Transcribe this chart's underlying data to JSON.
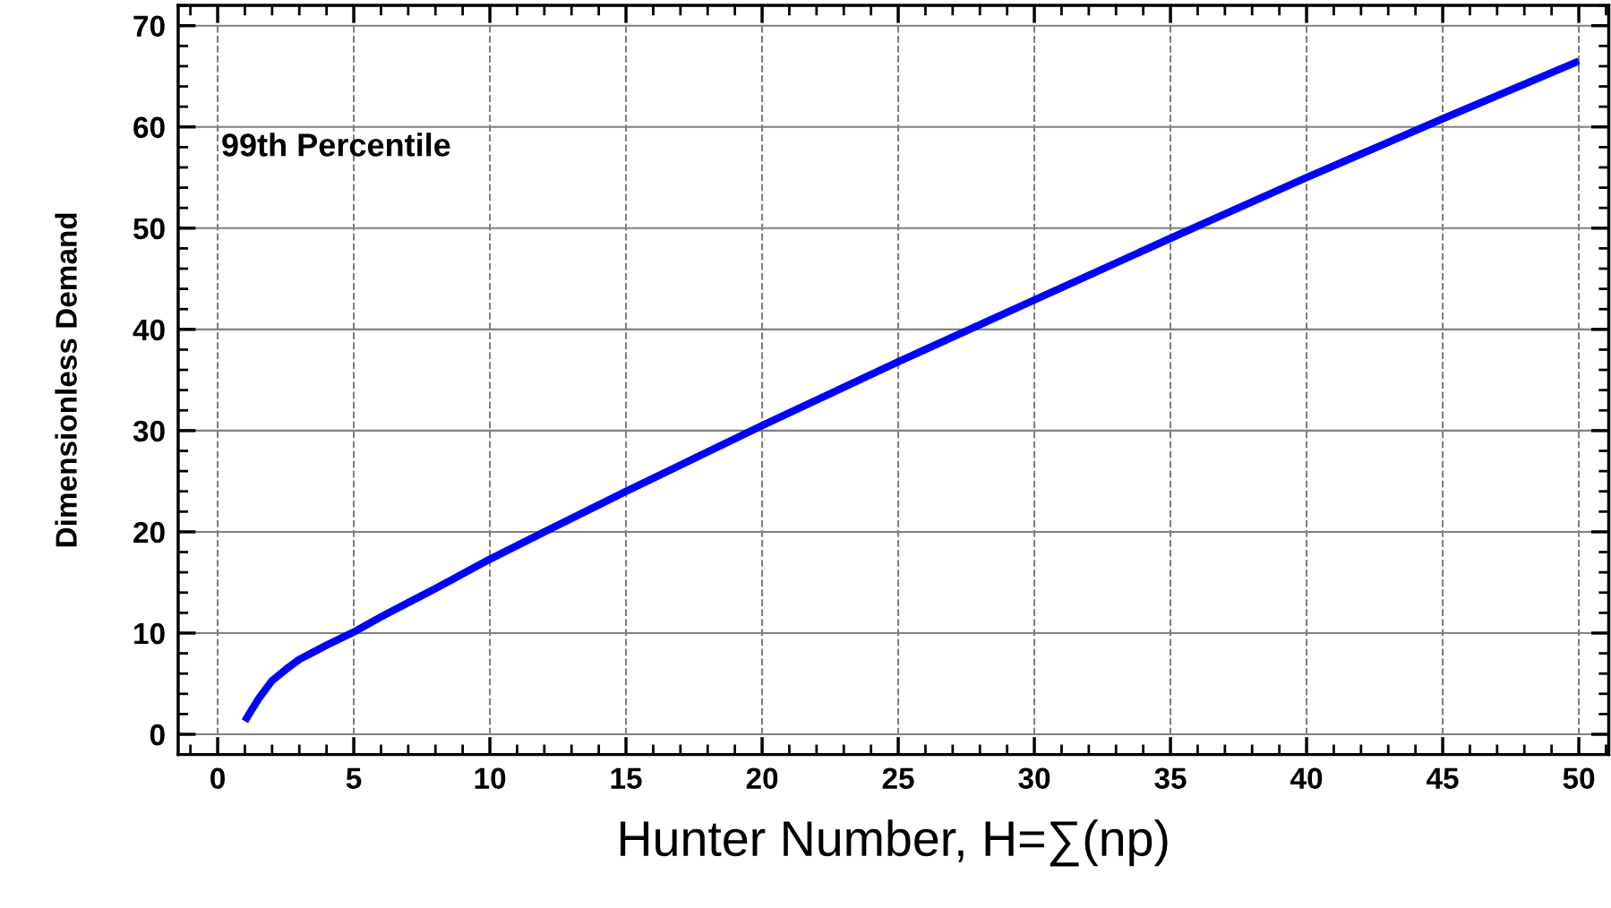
{
  "chart_data": {
    "type": "line",
    "xlabel": "Hunter Number, H=∑(np)",
    "ylabel": "Dimensionless Demand",
    "annotations": [
      "99th Percentile"
    ],
    "x": [
      1,
      1.2,
      1.5,
      2,
      2.5,
      3,
      3.5,
      4,
      5,
      6,
      7,
      8,
      10,
      12,
      15,
      20,
      25,
      30,
      35,
      40,
      45,
      50
    ],
    "series": [
      {
        "color": "#0000ff",
        "values": [
          1.3,
          2.2,
          3.5,
          5.3,
          6.4,
          7.4,
          8.1,
          8.8,
          10.1,
          11.6,
          13.0,
          14.4,
          17.3,
          20.0,
          24.0,
          30.5,
          36.8,
          42.9,
          49.0,
          55.0,
          60.8,
          66.5
        ]
      }
    ],
    "xlim": [
      -1.45,
      51.1
    ],
    "ylim": [
      -2,
      72
    ],
    "xticks": [
      0,
      5,
      10,
      15,
      20,
      25,
      30,
      35,
      40,
      45,
      50
    ],
    "yticks": [
      0,
      10,
      20,
      30,
      40,
      50,
      60,
      70
    ],
    "grid": true,
    "line_style": "solid",
    "marker": "none"
  }
}
